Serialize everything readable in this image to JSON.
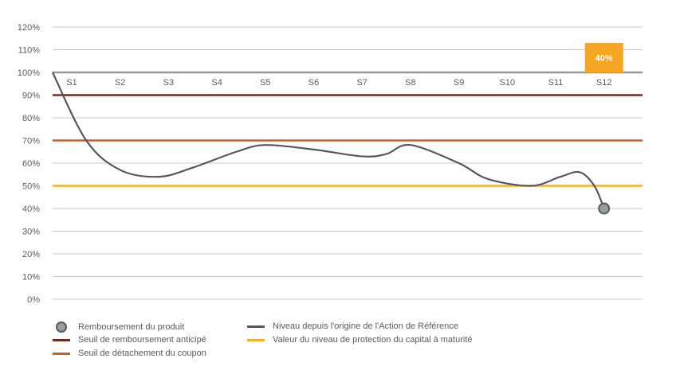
{
  "chart_data": {
    "type": "line",
    "ylim": [
      0,
      120
    ],
    "y_ticks": [
      "0%",
      "10%",
      "20%",
      "30%",
      "40%",
      "50%",
      "60%",
      "70%",
      "80%",
      "90%",
      "100%",
      "110%",
      "120%"
    ],
    "categories": [
      "S1",
      "S2",
      "S3",
      "S4",
      "S5",
      "S6",
      "S7",
      "S8",
      "S9",
      "S10",
      "S11",
      "S12"
    ],
    "grid": true,
    "thresholds": [
      {
        "name": "Seuil de remboursement anticipé",
        "value": 90,
        "color": "#6b2a22"
      },
      {
        "name": "Seuil de détachement du coupon",
        "value": 70,
        "color": "#d85a1a"
      },
      {
        "name": "Valeur du niveau de protection du capital à maturité",
        "value": 50,
        "color": "#f2b12a"
      }
    ],
    "reference_line": {
      "value": 100,
      "color": "#9a9a9a"
    },
    "series": [
      {
        "name": "Niveau depuis l'origine de l'Action de Référence",
        "color": "#565660",
        "x": [
          0,
          0.3,
          1,
          1.8,
          2.5,
          3.4,
          4,
          5,
          6,
          6.5,
          7,
          8,
          8.6,
          9.5,
          10.1,
          10.5,
          10.8,
          11
        ],
        "y": [
          100,
          70,
          57,
          54,
          58,
          65,
          68,
          66,
          63,
          64,
          68,
          60,
          53,
          50,
          54,
          56,
          50,
          40
        ]
      }
    ],
    "final_point": {
      "name": "Remboursement du produit",
      "x": 11,
      "y": 40
    },
    "annotation": {
      "label": "40%",
      "color": "#f5a623"
    }
  },
  "legend": [
    {
      "label": "Remboursement du produit",
      "kind": "dot"
    },
    {
      "label": "Niveau depuis l'origine de l'Action de Référence",
      "kind": "line",
      "color": "#565660"
    },
    {
      "label": "Seuil de remboursement anticipé",
      "kind": "line",
      "color": "#6b2a22"
    },
    {
      "label": "Valeur du niveau de protection du capital à maturité",
      "kind": "line",
      "color": "#f2b12a"
    },
    {
      "label": "Seuil de détachement du coupon",
      "kind": "line",
      "color": "#d85a1a"
    }
  ]
}
